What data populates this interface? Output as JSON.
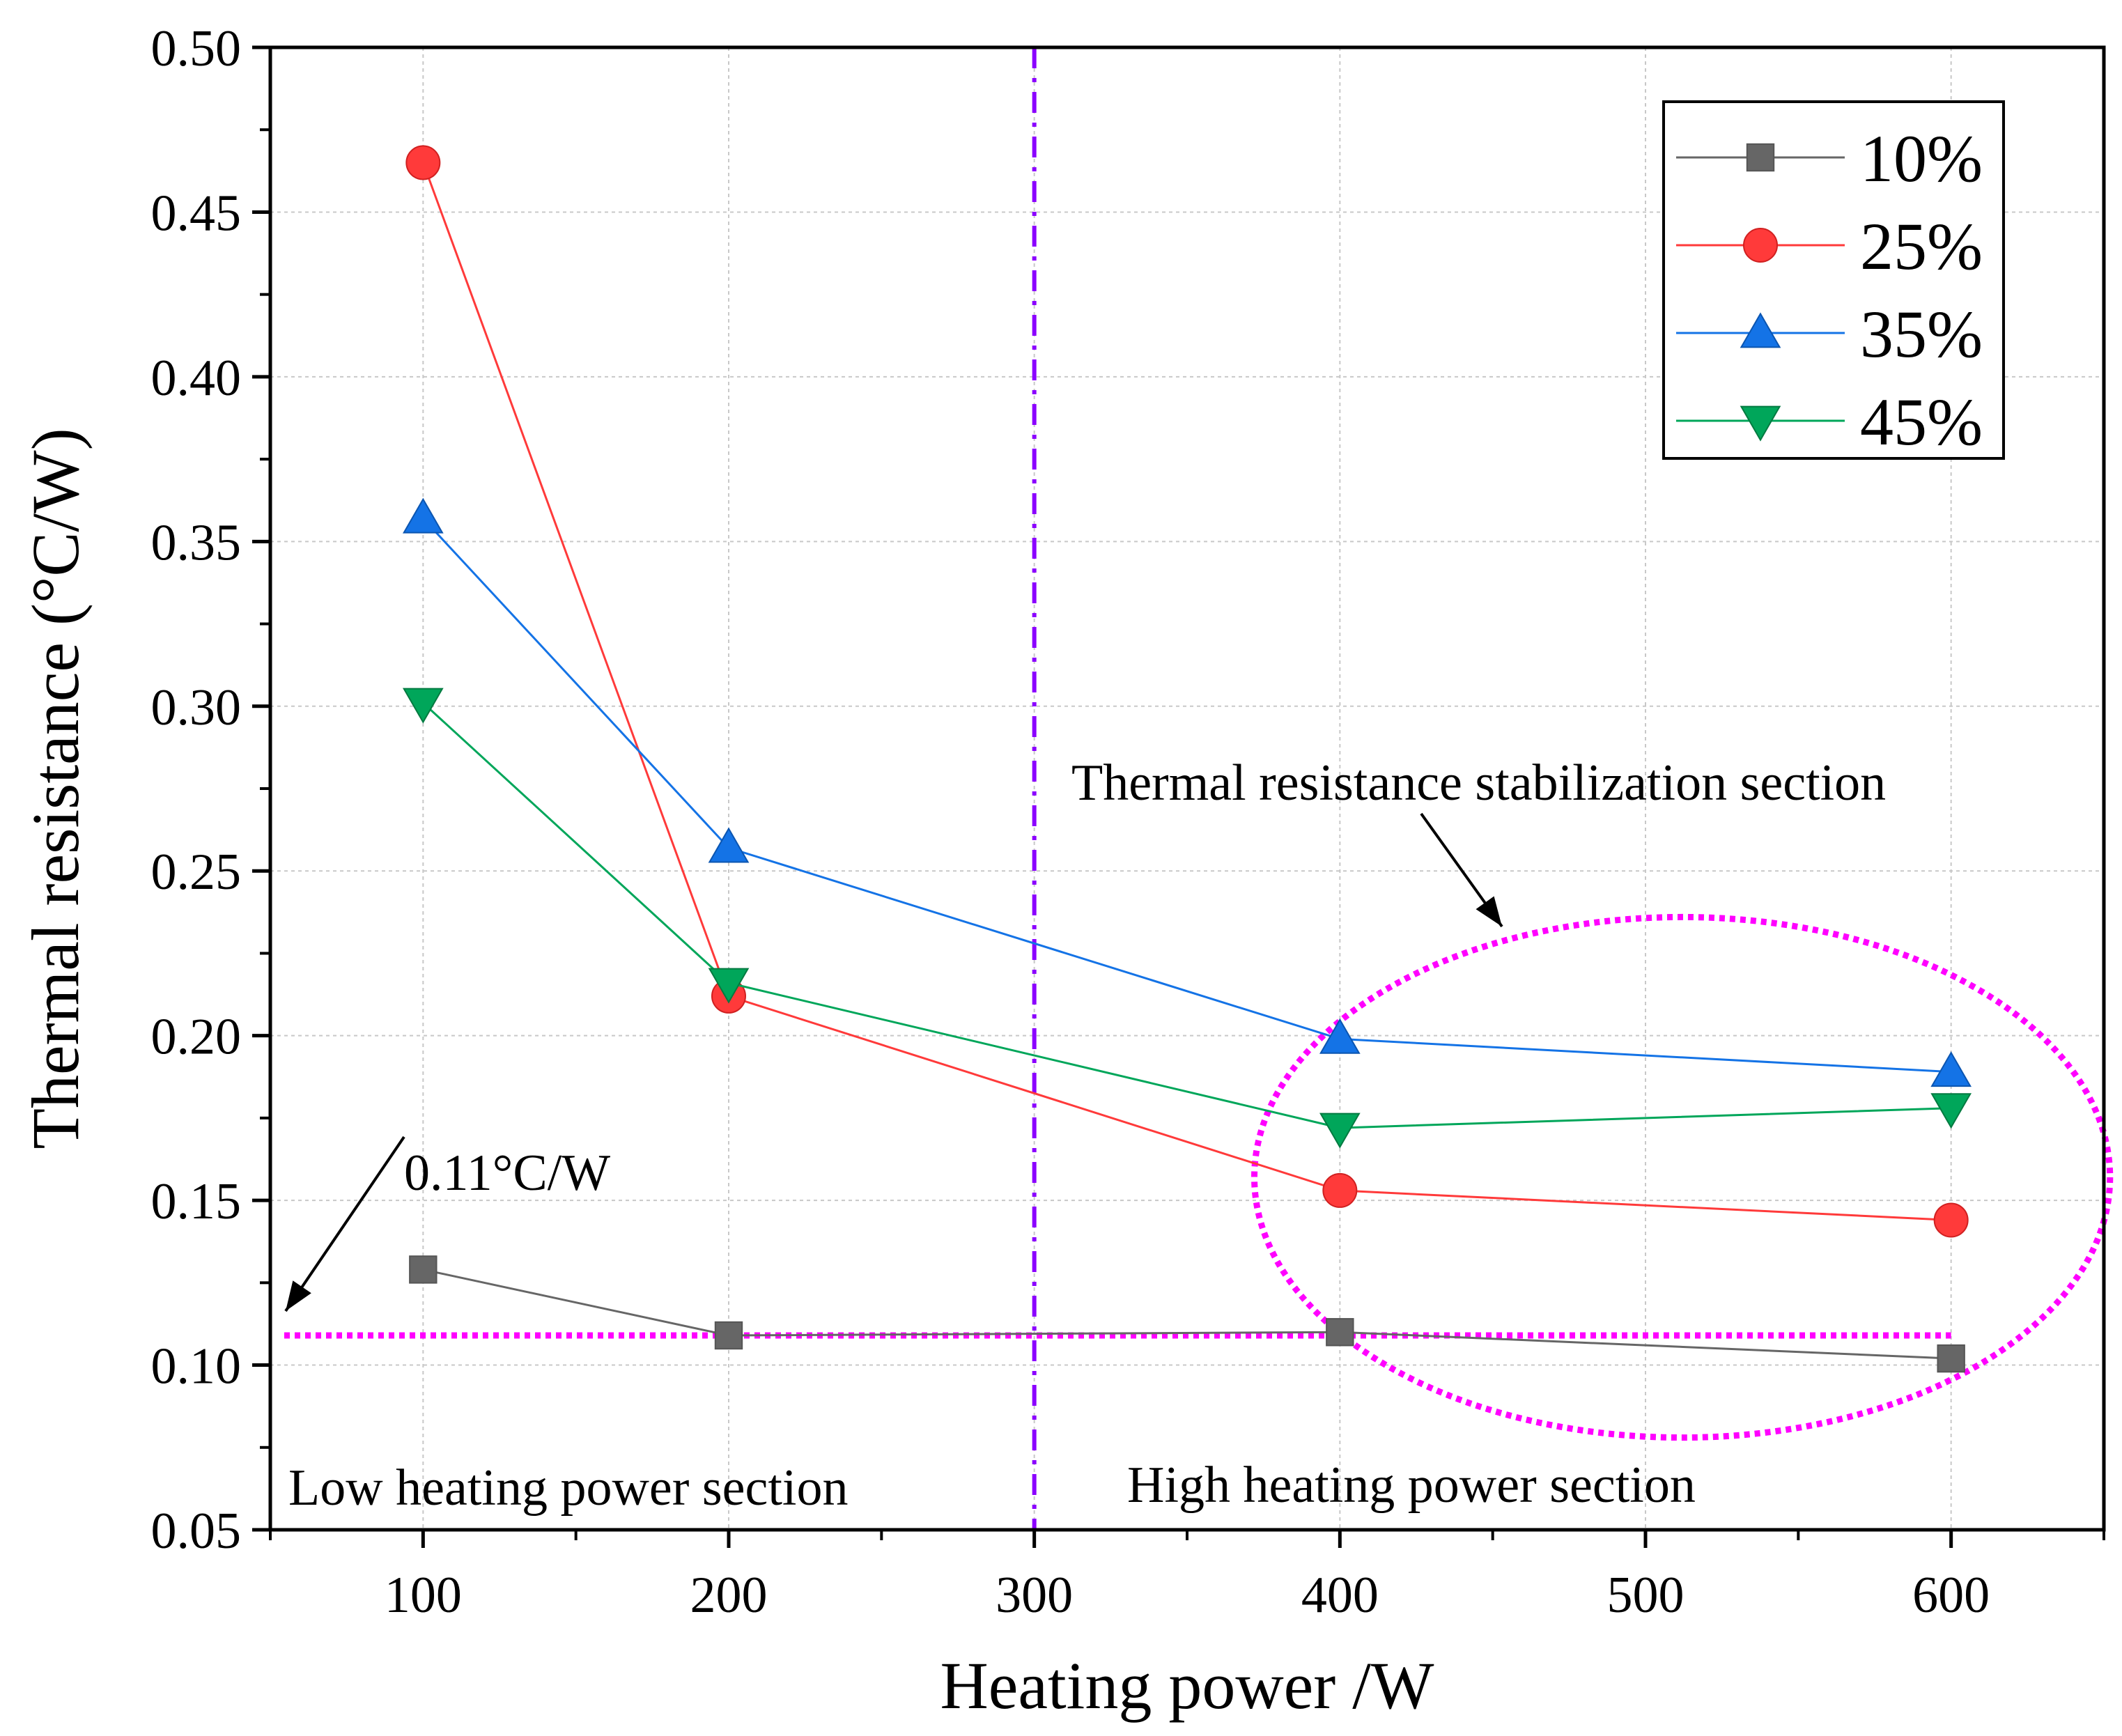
{
  "chart_data": {
    "type": "line",
    "xlabel": "Heating power /W",
    "ylabel": "Thermal resistance (°C/W)",
    "xlim": [
      50,
      650
    ],
    "ylim": [
      0.05,
      0.5
    ],
    "xticks": [
      100,
      200,
      300,
      400,
      500,
      600
    ],
    "yticks": [
      0.05,
      0.1,
      0.15,
      0.2,
      0.25,
      0.3,
      0.35,
      0.4,
      0.45,
      0.5
    ],
    "x_tick_labels": [
      "100",
      "200",
      "300",
      "400",
      "500",
      "600"
    ],
    "y_tick_labels": [
      "0.05",
      "0.10",
      "0.15",
      "0.20",
      "0.25",
      "0.30",
      "0.35",
      "0.40",
      "0.45",
      "0.50"
    ],
    "grid": true,
    "legend_position": "top-right",
    "x": [
      100,
      200,
      400,
      600
    ],
    "series": [
      {
        "name": "10%",
        "color": "#666666",
        "marker": "square",
        "values": [
          0.129,
          0.109,
          0.11,
          0.102
        ]
      },
      {
        "name": "25%",
        "color": "#ff3a3a",
        "marker": "circle",
        "values": [
          0.465,
          0.212,
          0.153,
          0.144
        ]
      },
      {
        "name": "35%",
        "color": "#1473e6",
        "marker": "triangle-up",
        "values": [
          0.357,
          0.257,
          0.199,
          0.189
        ]
      },
      {
        "name": "45%",
        "color": "#00a65a",
        "marker": "triangle-down",
        "values": [
          0.301,
          0.216,
          0.172,
          0.178
        ]
      }
    ],
    "reference_lines": [
      {
        "orientation": "horizontal",
        "value": 0.109,
        "color": "#ff00ff",
        "style": "dotted",
        "label": "0.11°C/W"
      },
      {
        "orientation": "vertical",
        "value": 300,
        "color": "#8b00ff",
        "style": "dash-dot"
      }
    ],
    "annotations": {
      "threshold": "0.11°C/W",
      "stabilization": "Thermal resistance stabilization section",
      "low_section": "Low heating power section",
      "high_section": "High heating power section"
    },
    "highlight_region": {
      "color": "#ff00ff",
      "style": "dotted",
      "center_x": 512,
      "center_y": 0.157,
      "radius_x": 140,
      "radius_y": 0.079
    }
  }
}
